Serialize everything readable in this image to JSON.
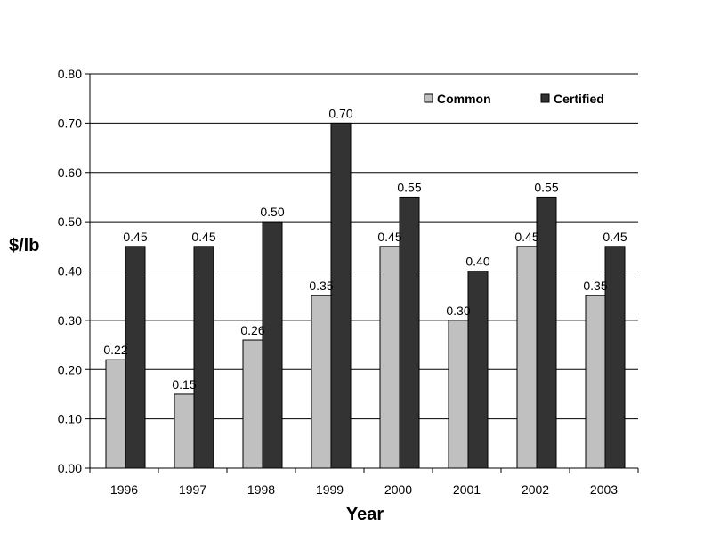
{
  "chart_data": {
    "type": "bar",
    "categories": [
      "1996",
      "1997",
      "1998",
      "1999",
      "2000",
      "2001",
      "2002",
      "2003"
    ],
    "series": [
      {
        "name": "Common",
        "color": "#c0c0c0",
        "values": [
          0.22,
          0.15,
          0.26,
          0.35,
          0.45,
          0.3,
          0.45,
          0.35
        ]
      },
      {
        "name": "Certified",
        "color": "#333333",
        "values": [
          0.45,
          0.45,
          0.5,
          0.7,
          0.55,
          0.4,
          0.55,
          0.45
        ]
      }
    ],
    "title": "",
    "xlabel": "Year",
    "ylabel": "$/lb",
    "ylim": [
      0,
      0.8
    ],
    "ytick_step": 0.1,
    "grid": true,
    "legend": "top-right"
  }
}
